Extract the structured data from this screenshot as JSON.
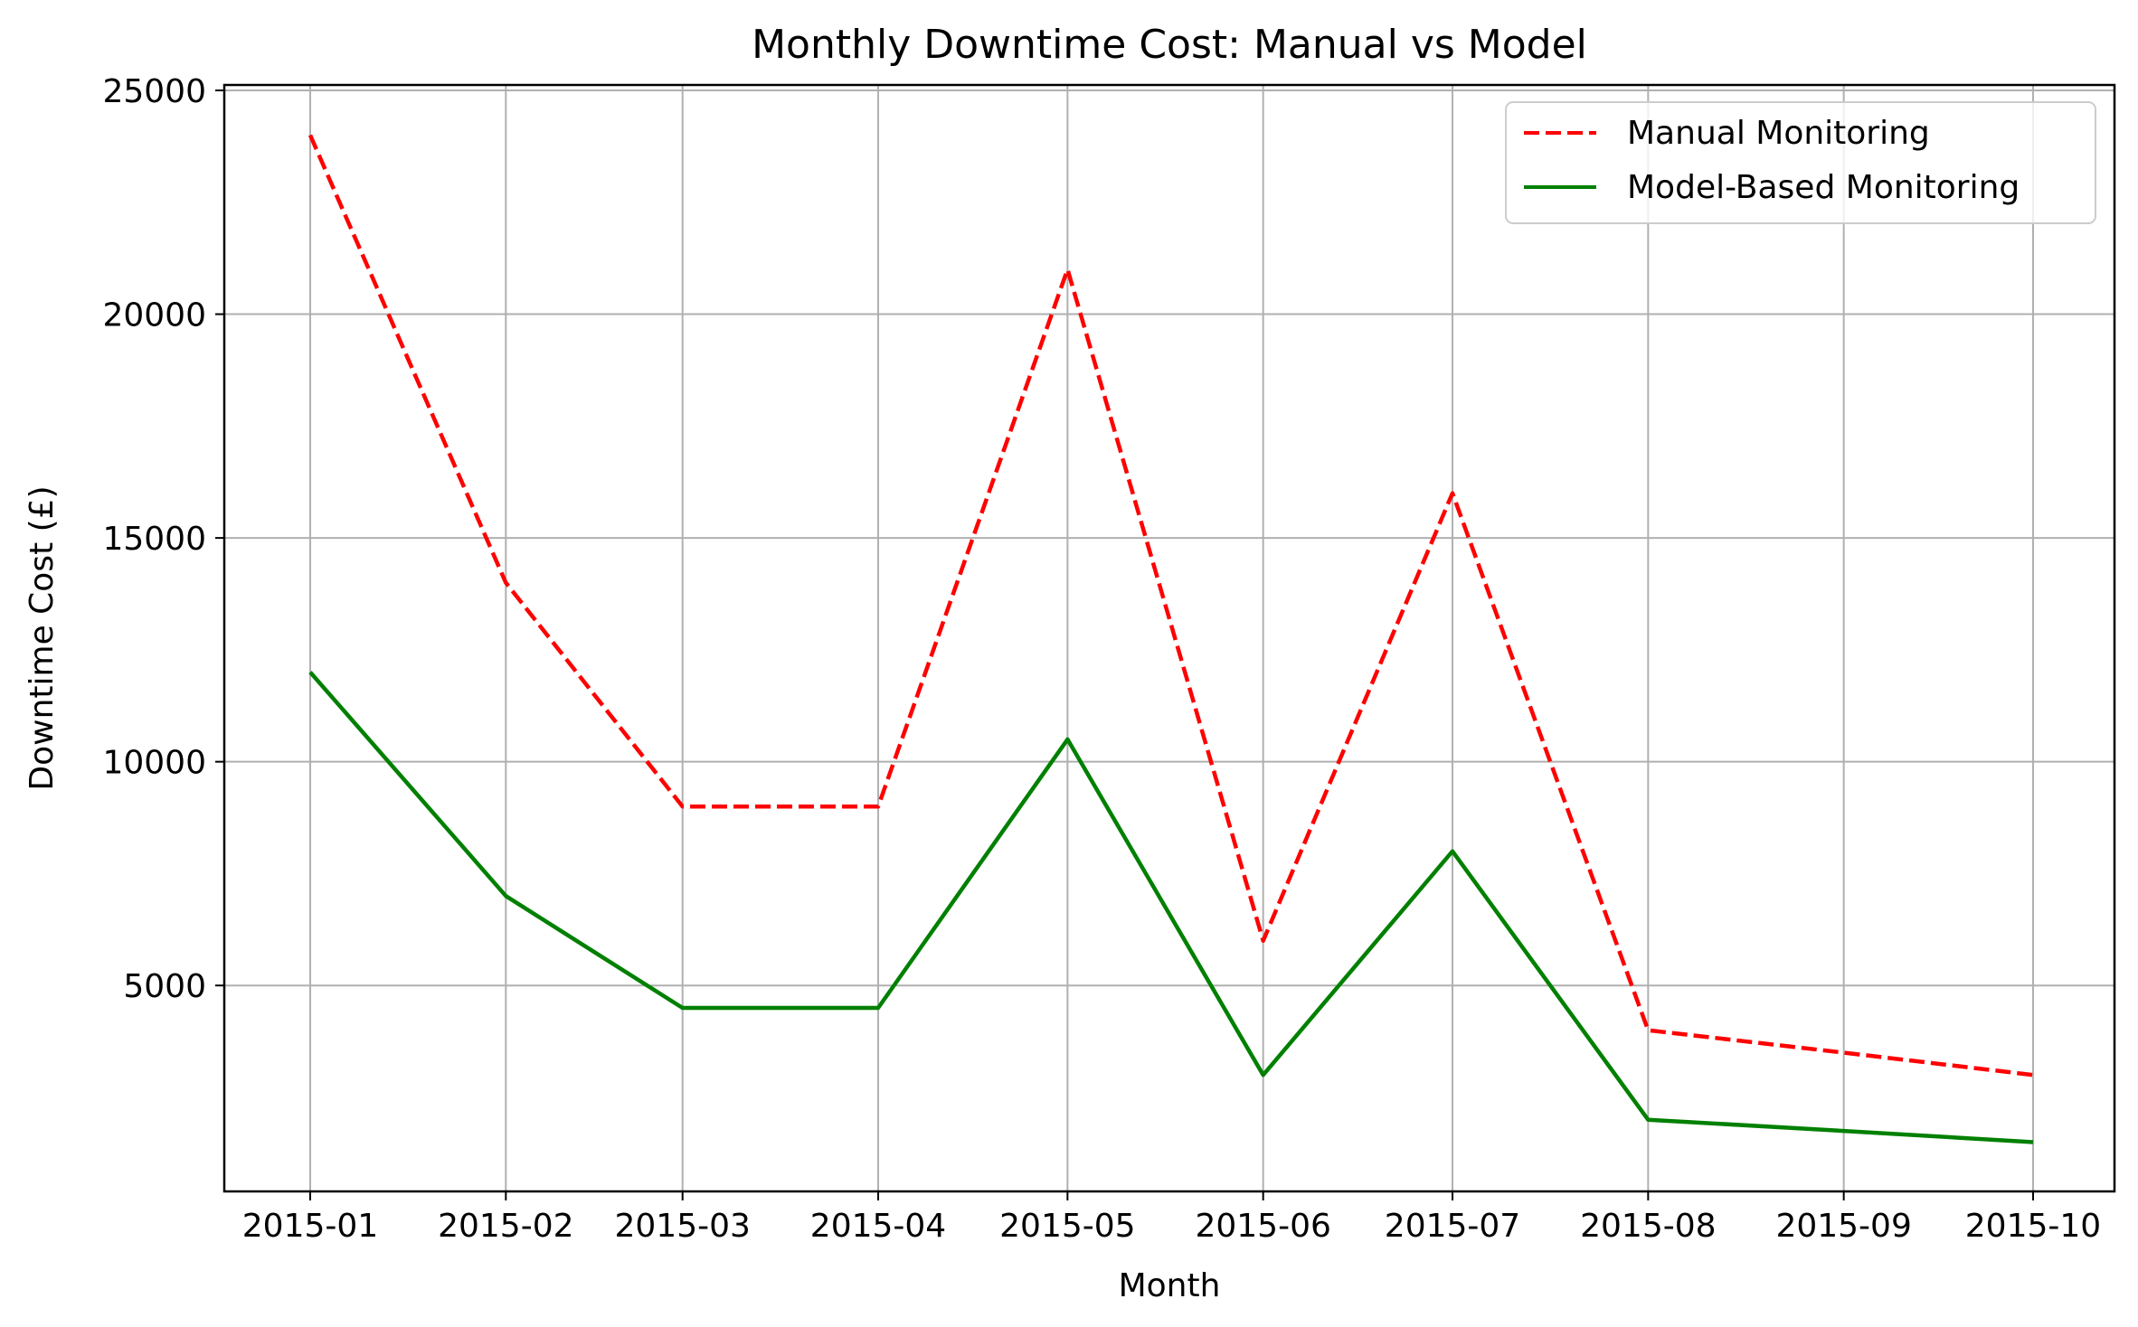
{
  "chart_data": {
    "type": "line",
    "title": "Monthly Downtime Cost: Manual vs Model",
    "xlabel": "Month",
    "ylabel": "Downtime Cost (£)",
    "categories": [
      "2015-01",
      "2015-02",
      "2015-03",
      "2015-04",
      "2015-05",
      "2015-06",
      "2015-07",
      "2015-08",
      "2015-09",
      "2015-10"
    ],
    "x_positions": [
      0,
      31,
      59,
      90,
      120,
      151,
      181,
      212,
      243,
      273
    ],
    "ylim": [
      500,
      25000
    ],
    "yticks": [
      5000,
      10000,
      15000,
      20000,
      25000
    ],
    "grid": true,
    "legend_position": "top-right",
    "series": [
      {
        "name": "Manual Monitoring",
        "color": "#ff0000",
        "linestyle": "dashed",
        "values": [
          24000,
          14000,
          9000,
          9000,
          21000,
          6000,
          16000,
          4000,
          3500,
          3000
        ]
      },
      {
        "name": "Model-Based Monitoring",
        "color": "#008000",
        "linestyle": "solid",
        "values": [
          12000,
          7000,
          4500,
          4500,
          10500,
          3000,
          8000,
          2000,
          1750,
          1500
        ]
      }
    ]
  }
}
